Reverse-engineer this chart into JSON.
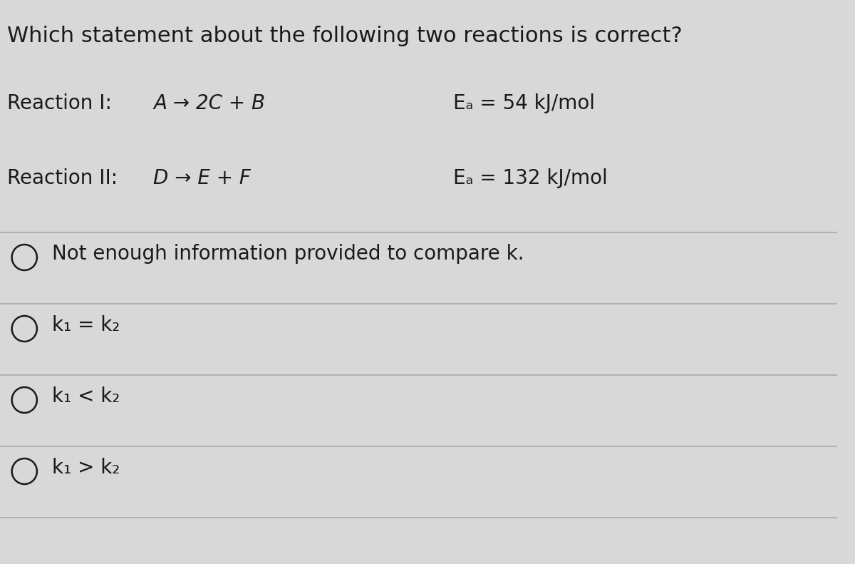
{
  "background_color": "#d8d8d8",
  "text_color": "#1a1a1a",
  "title": "Which statement about the following two reactions is correct?",
  "reaction1_label": "Reaction I:",
  "reaction1_equation": "A → 2C + B",
  "reaction1_ea": "Eₐ = 54 kJ/mol",
  "reaction2_label": "Reaction II:",
  "reaction2_equation": "D → E + F",
  "reaction2_ea": "Eₐ = 132 kJ/mol",
  "options": [
    "Not enough information provided to compare k.",
    "k₁ = k₂",
    "k₁ < k₂",
    "k₁ > k₂"
  ],
  "divider_color": "#aaaaaa",
  "title_fontsize": 22,
  "label_fontsize": 20,
  "option_fontsize": 20
}
